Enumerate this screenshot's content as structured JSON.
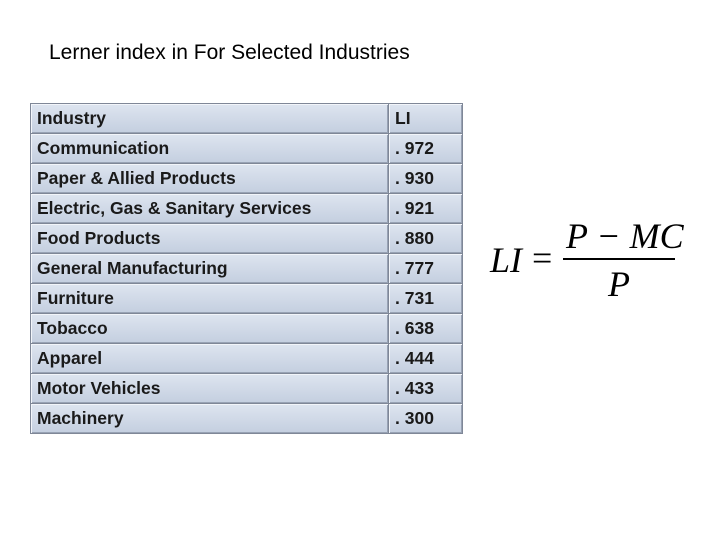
{
  "title": "Lerner index in For Selected Industries",
  "table": {
    "header": [
      "Industry",
      "LI"
    ],
    "rows": [
      [
        "Communication",
        ". 972"
      ],
      [
        "Paper & Allied Products",
        ". 930"
      ],
      [
        "Electric, Gas & Sanitary Services",
        ". 921"
      ],
      [
        "Food Products",
        ". 880"
      ],
      [
        "General Manufacturing",
        ". 777"
      ],
      [
        "Furniture",
        ". 731"
      ],
      [
        "Tobacco",
        ". 638"
      ],
      [
        "Apparel",
        ". 444"
      ],
      [
        "Motor Vehicles",
        ". 433"
      ],
      [
        "Machinery",
        ". 300"
      ]
    ]
  },
  "formula": {
    "lhs": "LI",
    "equals": "=",
    "numerator": "P − MC",
    "denominator": "P"
  }
}
